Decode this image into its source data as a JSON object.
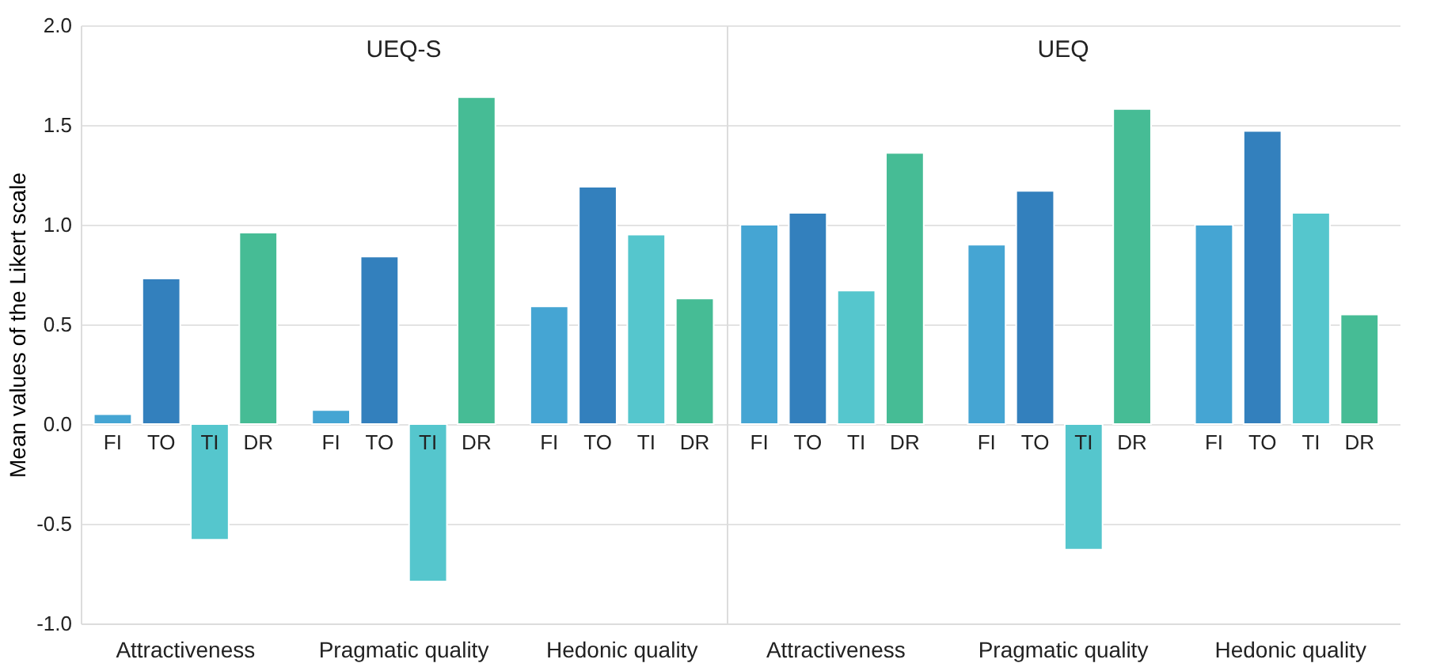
{
  "chart_data": [
    {
      "type": "bar",
      "title": "UEQ-S",
      "ylabel": "Mean values of the Likert scale",
      "categories": [
        "Attractiveness",
        "Pragmatic quality",
        "Hedonic quality"
      ],
      "series": [
        {
          "name": "FI",
          "color": "#45a5d3",
          "values": [
            0.05,
            0.07,
            0.59
          ]
        },
        {
          "name": "TO",
          "color": "#3380bd",
          "values": [
            0.73,
            0.84,
            1.19
          ]
        },
        {
          "name": "TI",
          "color": "#55c6cd",
          "values": [
            -0.58,
            -0.79,
            0.95
          ]
        },
        {
          "name": "DR",
          "color": "#46bc95",
          "values": [
            0.96,
            1.64,
            0.63
          ]
        }
      ],
      "ylim": [
        -1.0,
        2.0
      ],
      "yticks": [
        {
          "value": -1,
          "label": "-1.0"
        },
        {
          "value": -0.5,
          "label": "-0.5"
        },
        {
          "value": 0,
          "label": "0.0"
        },
        {
          "value": 0.5,
          "label": "0.5"
        },
        {
          "value": 1,
          "label": "1.0"
        },
        {
          "value": 1.5,
          "label": "1.5"
        },
        {
          "value": 2,
          "label": "2.0"
        }
      ],
      "grid": "y"
    },
    {
      "type": "bar",
      "title": "UEQ",
      "categories": [
        "Attractiveness",
        "Pragmatic quality",
        "Hedonic quality"
      ],
      "series": [
        {
          "name": "FI",
          "color": "#45a5d3",
          "values": [
            1.0,
            0.9,
            1.0
          ]
        },
        {
          "name": "TO",
          "color": "#3380bd",
          "values": [
            1.06,
            1.17,
            1.47
          ]
        },
        {
          "name": "TI",
          "color": "#55c6cd",
          "values": [
            0.67,
            -0.63,
            1.06
          ]
        },
        {
          "name": "DR",
          "color": "#46bc95",
          "values": [
            1.36,
            1.58,
            0.55
          ]
        }
      ],
      "ylim": [
        -1.0,
        2.0
      ],
      "yticks": [
        -1,
        -0.5,
        0,
        0.5,
        1,
        1.5,
        2
      ],
      "grid": "y",
      "tick_labels": "x"
    }
  ]
}
